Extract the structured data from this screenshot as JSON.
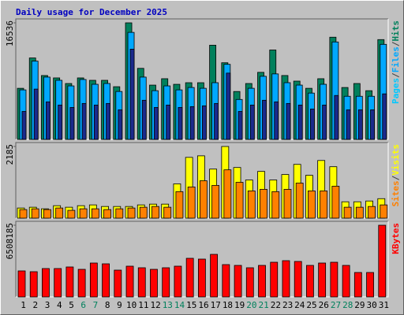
{
  "chart_data": [
    {
      "type": "bar",
      "title": "Daily usage for December 2025",
      "separator": "/",
      "ylim": [
        0,
        16536
      ],
      "yticks": [
        16536
      ],
      "series": [
        {
          "name": "Hits",
          "color": "#00805c",
          "values": [
            7249,
            11553,
            9061,
            8721,
            7928,
            8721,
            8381,
            8381,
            7475,
            16536,
            10080,
            7702,
            8608,
            7815,
            8041,
            8041,
            13365,
            10873,
            6796,
            7928,
            9514,
            12685,
            9061,
            8268,
            7249,
            8608,
            14497,
            7362,
            7928,
            6909,
            14158
          ]
        },
        {
          "name": "Files",
          "color": "#00a8ff",
          "values": [
            7025,
            11103,
            8837,
            8384,
            7591,
            8498,
            7818,
            7931,
            6798,
            15182,
            8837,
            6911,
            7591,
            7025,
            7364,
            7251,
            8044,
            10650,
            5665,
            7251,
            8951,
            9291,
            8044,
            7704,
            6571,
            7818,
            13823,
            6118,
            6118,
            6118,
            13483
          ]
        },
        {
          "name": "Pages",
          "color": "#00c8ff",
          "fill": "#1a2a8c",
          "values": [
            3966,
            7138,
            5325,
            4872,
            4532,
            5099,
            4872,
            5099,
            4192,
            12803,
            5552,
            4532,
            4872,
            4532,
            4645,
            4759,
            5099,
            9404,
            3966,
            4872,
            5552,
            5325,
            5099,
            4872,
            4305,
            4872,
            6232,
            4192,
            4192,
            4192,
            6458
          ]
        }
      ]
    },
    {
      "type": "bar",
      "separator": "/",
      "ylim": [
        0,
        2185
      ],
      "yticks": [
        2185
      ],
      "series": [
        {
          "name": "Visits",
          "color": "#ffff00",
          "values": [
            309,
            333,
            285,
            380,
            333,
            380,
            404,
            356,
            356,
            356,
            404,
            428,
            428,
            1045,
            1853,
            1900,
            1496,
            2185,
            1544,
            1164,
            1425,
            1164,
            1330,
            1639,
            1306,
            1758,
            1568,
            499,
            499,
            523,
            594
          ]
        },
        {
          "name": "Sites",
          "color": "#ff8000",
          "values": [
            261,
            285,
            261,
            309,
            238,
            285,
            285,
            261,
            285,
            309,
            333,
            356,
            333,
            808,
            950,
            1140,
            998,
            1473,
            1093,
            831,
            879,
            808,
            879,
            1069,
            831,
            831,
            974,
            333,
            333,
            356,
            404
          ]
        }
      ]
    },
    {
      "type": "bar",
      "ylim": [
        0,
        6508185
      ],
      "yticks": [
        6508185
      ],
      "categories": [
        "1",
        "2",
        "3",
        "4",
        "5",
        "6",
        "7",
        "8",
        "9",
        "10",
        "11",
        "12",
        "13",
        "14",
        "15",
        "16",
        "17",
        "18",
        "19",
        "20",
        "21",
        "22",
        "23",
        "24",
        "25",
        "26",
        "27",
        "28",
        "29",
        "30",
        "31"
      ],
      "category_colors": [
        "#000",
        "#000",
        "#000",
        "#000",
        "#000",
        "#00805c",
        "#00805c",
        "#000",
        "#000",
        "#000",
        "#000",
        "#000",
        "#00805c",
        "#00805c",
        "#000",
        "#000",
        "#000",
        "#000",
        "#000",
        "#00805c",
        "#00805c",
        "#000",
        "#000",
        "#000",
        "#000",
        "#000",
        "#00805c",
        "#00805c",
        "#000",
        "#000",
        "#000"
      ],
      "series": [
        {
          "name": "KBytes",
          "color": "#ff0000",
          "values": [
            2360127,
            2288608,
            2574684,
            2574684,
            2717722,
            2503165,
            3075317,
            3003798,
            2431646,
            2789241,
            2646203,
            2503165,
            2646203,
            2789241,
            3504431,
            3432912,
            3862026,
            2932279,
            2860760,
            2646203,
            2860760,
            3146836,
            3289874,
            3218355,
            2860760,
            3075317,
            3146836,
            2860760,
            2217089,
            2217089,
            6508185
          ]
        }
      ]
    }
  ]
}
